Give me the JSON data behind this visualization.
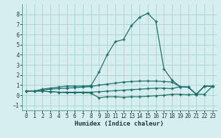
{
  "title": "",
  "xlabel": "Humidex (Indice chaleur)",
  "xlim": [
    -0.5,
    23.5
  ],
  "ylim": [
    -1.5,
    9.0
  ],
  "xticks": [
    0,
    1,
    2,
    3,
    4,
    5,
    6,
    7,
    8,
    9,
    10,
    11,
    12,
    13,
    14,
    15,
    16,
    17,
    18,
    19,
    20,
    21,
    22,
    23
  ],
  "yticks": [
    -1,
    0,
    1,
    2,
    3,
    4,
    5,
    6,
    7,
    8
  ],
  "bg_color": "#d6eeee",
  "grid_color": "#aed4d4",
  "line_color": "#1a6e6a",
  "line1_x": [
    0,
    1,
    2,
    3,
    4,
    5,
    6,
    7,
    8,
    9,
    10,
    11,
    12,
    13,
    14,
    15,
    16,
    17,
    18,
    19,
    20,
    21,
    22,
    23
  ],
  "line1_y": [
    0.4,
    0.4,
    0.6,
    0.7,
    0.8,
    0.9,
    0.9,
    0.9,
    0.95,
    2.3,
    4.0,
    5.3,
    5.5,
    6.9,
    7.7,
    8.1,
    7.3,
    2.6,
    1.5,
    0.85,
    0.8,
    0.1,
    0.9,
    0.9
  ],
  "line2_x": [
    0,
    1,
    2,
    3,
    4,
    5,
    6,
    7,
    8,
    9,
    10,
    11,
    12,
    13,
    14,
    15,
    16,
    17,
    18,
    19,
    20,
    21,
    22,
    23
  ],
  "line2_y": [
    0.4,
    0.4,
    0.5,
    0.6,
    0.65,
    0.7,
    0.75,
    0.8,
    0.85,
    1.0,
    1.1,
    1.2,
    1.3,
    1.35,
    1.4,
    1.4,
    1.4,
    1.35,
    1.3,
    0.85,
    0.8,
    0.1,
    0.9,
    0.9
  ],
  "line3_x": [
    2,
    3,
    4,
    5,
    6,
    7,
    8,
    9,
    10,
    11,
    12,
    13,
    14,
    15,
    16,
    17,
    18,
    19,
    20,
    21,
    22,
    23
  ],
  "line3_y": [
    0.4,
    0.35,
    0.3,
    0.25,
    0.25,
    0.25,
    0.2,
    -0.25,
    -0.15,
    -0.15,
    -0.2,
    -0.15,
    -0.15,
    -0.1,
    -0.05,
    0.0,
    0.1,
    0.1,
    0.05,
    0.1,
    0.1,
    0.9
  ],
  "line4_x": [
    0,
    1,
    2,
    3,
    4,
    5,
    6,
    7,
    8,
    9,
    10,
    11,
    12,
    13,
    14,
    15,
    16,
    17,
    18,
    19,
    20,
    21,
    22,
    23
  ],
  "line4_y": [
    0.4,
    0.4,
    0.4,
    0.35,
    0.3,
    0.3,
    0.3,
    0.3,
    0.3,
    0.35,
    0.4,
    0.45,
    0.5,
    0.55,
    0.6,
    0.65,
    0.7,
    0.7,
    0.65,
    0.85,
    0.8,
    0.1,
    0.9,
    0.9
  ]
}
